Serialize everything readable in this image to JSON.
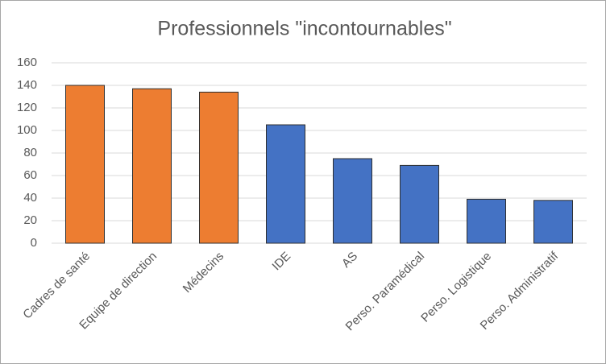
{
  "chart_data": {
    "type": "bar",
    "title": "Professionnels \"incontournables\"",
    "categories": [
      "Cadres de santé",
      "Equipe de direction",
      "Médecins",
      "IDE",
      "AS",
      "Perso. Paramédical",
      "Perso. Logistique",
      "Perso. Administratif"
    ],
    "values": [
      140,
      137,
      134,
      105,
      75,
      69,
      39,
      38
    ],
    "colors": [
      "#ed7d31",
      "#ed7d31",
      "#ed7d31",
      "#4472c4",
      "#4472c4",
      "#4472c4",
      "#4472c4",
      "#4472c4"
    ],
    "ylim": [
      0,
      160
    ],
    "yticks": [
      0,
      20,
      40,
      60,
      80,
      100,
      120,
      140,
      160
    ],
    "grid": true
  }
}
